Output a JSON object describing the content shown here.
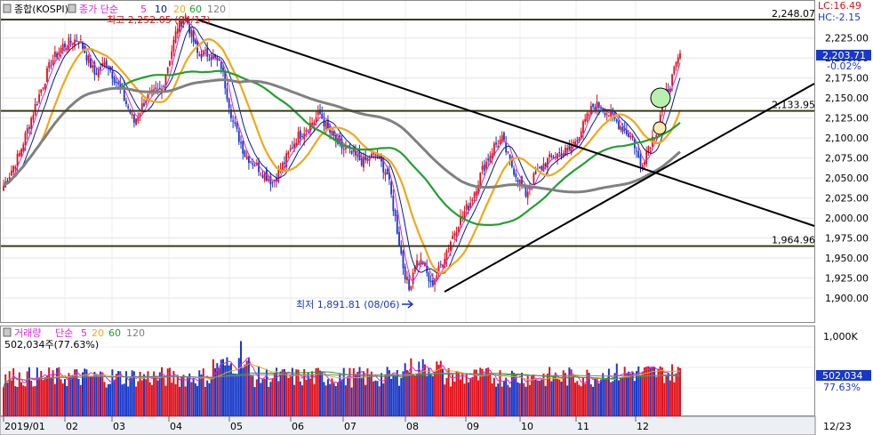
{
  "price_panel": {
    "title": "종합(KOSPI)",
    "ma_label": "종가 단순",
    "ma_periods": [
      "5",
      "10",
      "20",
      "60",
      "120"
    ],
    "ma_colors": [
      "#e020e0",
      "#00208a",
      "#f0a818",
      "#20a030",
      "#808080"
    ],
    "hi_label": "최고 2,252.05 (04/17)",
    "lo_label": "최저 1,891.81 (08/06)",
    "lc": "LC:16.49",
    "hc": "HC:-2.15",
    "current_price": "2,203.71",
    "change_pct": "-0.02%",
    "ref_lines": [
      {
        "value": 2248.07,
        "label": "2,248.07"
      },
      {
        "value": 2133.95,
        "label": "2,133.95"
      },
      {
        "value": 1964.96,
        "label": "1,964.96"
      }
    ],
    "y_ticks": [
      "2,225.00",
      "2,200.00",
      "2,175.00",
      "2,150.00",
      "2,125.00",
      "2,100.00",
      "2,075.00",
      "2,050.00",
      "2,025.00",
      "2,000.00",
      "1,975.00",
      "1,950.00",
      "1,925.00",
      "1,900.00"
    ],
    "up_color": "#e0101a",
    "down_color": "#1838c8"
  },
  "volume_panel": {
    "title": "거래량",
    "ma_label": "단순",
    "ma_periods": [
      "5",
      "20",
      "60",
      "120"
    ],
    "ma_colors": [
      "#e020e0",
      "#f0a818",
      "#20a030",
      "#808080"
    ],
    "last_volume": "502,034주(77.63%)",
    "y_label": "1,000K",
    "current_value": "502,034",
    "current_pct": "77.63%"
  },
  "x_labels": [
    "2019/01",
    "02",
    "03",
    "04",
    "05",
    "06",
    "07",
    "08",
    "09",
    "10",
    "11",
    "12"
  ],
  "x_right_label": "12/23",
  "chart_data": {
    "type": "candlestick",
    "title": "종합(KOSPI)",
    "x_range": [
      "2019/01",
      "2019/12"
    ],
    "y_range": [
      1890,
      2252
    ],
    "months": [
      "2019/01",
      "02",
      "03",
      "04",
      "05",
      "06",
      "07",
      "08",
      "09",
      "10",
      "11",
      "12"
    ],
    "approx_monthly_close": [
      2204,
      2195,
      2140,
      2203,
      2041,
      2130,
      2024,
      1967,
      2063,
      2083,
      2087,
      2203
    ],
    "high": {
      "value": 2252.05,
      "date": "04/17"
    },
    "low": {
      "value": 1891.81,
      "date": "08/06"
    },
    "horizontal_lines": [
      2248.07,
      2133.95,
      1964.96
    ],
    "last_close": 2203.71,
    "last_change_pct": -0.02,
    "volume_last": 502034,
    "volume_pct": 77.63,
    "volume_axis_max": "1,000K"
  }
}
